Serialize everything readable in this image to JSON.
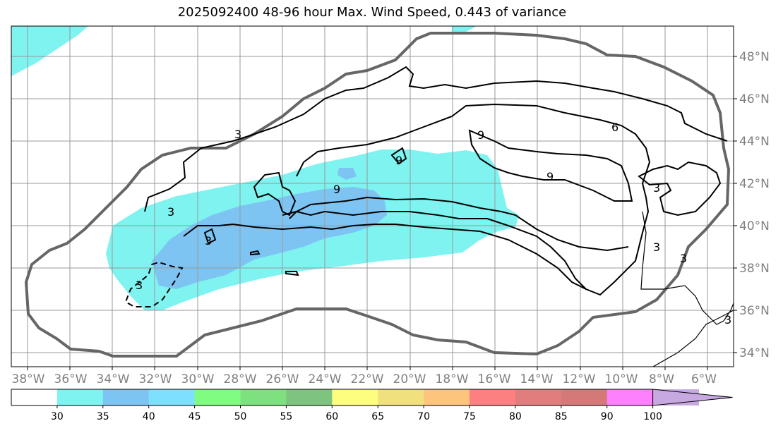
{
  "title": "2025092400 48-96 hour Max. Wind Speed, 0.443 of variance",
  "map": {
    "lon_labels": [
      "38°W",
      "36°W",
      "34°W",
      "32°W",
      "30°W",
      "28°W",
      "26°W",
      "24°W",
      "22°W",
      "20°W",
      "18°W",
      "16°W",
      "14°W",
      "12°W",
      "10°W",
      "8°W",
      "6°W"
    ],
    "lat_labels": [
      "48°N",
      "46°N",
      "44°N",
      "42°N",
      "40°N",
      "38°N",
      "36°N",
      "34°N"
    ],
    "contour_labels": [
      "3",
      "9",
      "9",
      "9",
      "9",
      "6",
      "3",
      "3",
      "3",
      "3",
      "3",
      "3",
      "3"
    ],
    "fill_colors": {
      "30-35": "#7ef3f0",
      "35-40": "#7ec4f3"
    },
    "land_color": "#ffffff",
    "border_color": "#666666"
  },
  "colorbar": {
    "ticks": [
      "30",
      "35",
      "40",
      "45",
      "50",
      "55",
      "60",
      "65",
      "70",
      "75",
      "80",
      "85",
      "90",
      "100"
    ],
    "colors": [
      "#ffffff",
      "#7ef3f0",
      "#7ec4f3",
      "#7ee0fd",
      "#80fd80",
      "#7ee07e",
      "#7ec47e",
      "#fdfd80",
      "#f0e07e",
      "#fdc47e",
      "#fd8080",
      "#e07e7e",
      "#d47878",
      "#fd80fd",
      "#c8a8e0"
    ]
  }
}
